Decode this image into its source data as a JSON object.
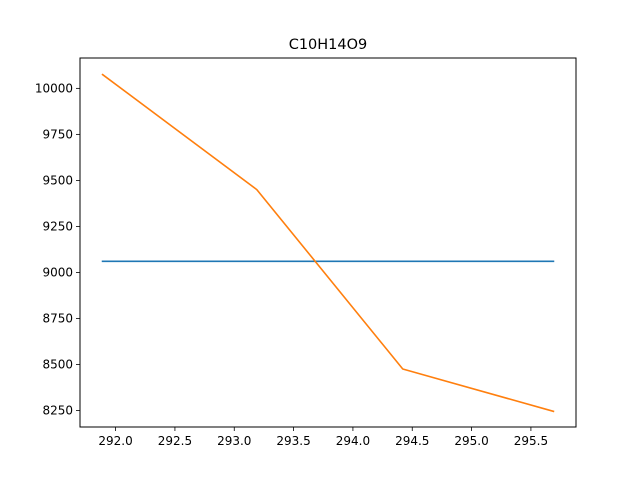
{
  "chart_data": {
    "type": "line",
    "title": "C10H14O9",
    "xlabel": "",
    "ylabel": "",
    "xlim": [
      291.7,
      295.88
    ],
    "ylim": [
      8160,
      10165
    ],
    "x_ticks": [
      292.0,
      292.5,
      293.0,
      293.5,
      294.0,
      294.5,
      295.0,
      295.5
    ],
    "x_tick_labels": [
      "292.0",
      "292.5",
      "293.0",
      "293.5",
      "294.0",
      "294.5",
      "295.0",
      "295.5"
    ],
    "y_ticks": [
      8250,
      8500,
      8750,
      9000,
      9250,
      9500,
      9750,
      10000
    ],
    "y_tick_labels": [
      "8250",
      "8500",
      "8750",
      "9000",
      "9250",
      "9500",
      "9750",
      "10000"
    ],
    "grid": false,
    "series": [
      {
        "color": "#1f77b4",
        "x": [
          291.89,
          295.69
        ],
        "y": [
          9060,
          9060
        ]
      },
      {
        "color": "#ff7f0e",
        "x": [
          291.89,
          293.19,
          294.42,
          295.69
        ],
        "y": [
          10075,
          9450,
          8475,
          8245
        ]
      }
    ]
  }
}
